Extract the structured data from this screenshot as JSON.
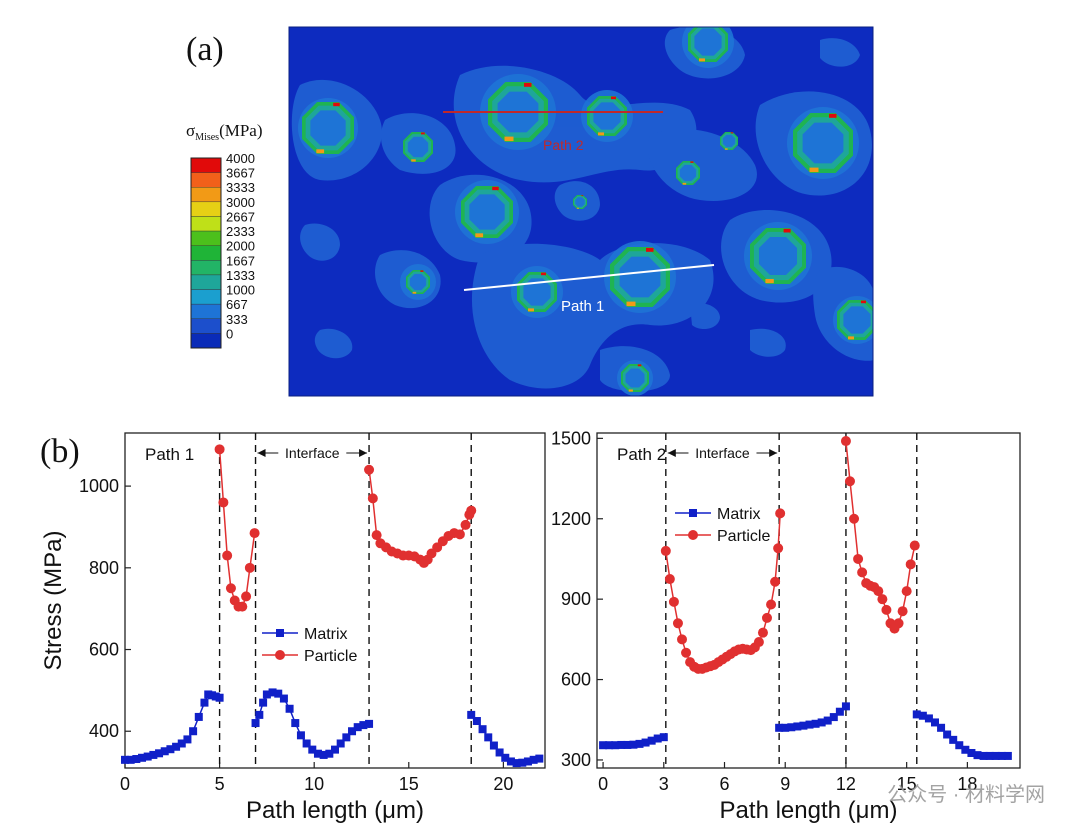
{
  "panel_a": {
    "label": "(a)",
    "legend_title_main": "σ",
    "legend_title_sub": "Mises",
    "legend_title_unit": "(MPa)",
    "levels": [
      "4000",
      "3667",
      "3333",
      "3000",
      "2667",
      "2333",
      "2000",
      "1667",
      "1333",
      "1000",
      "667",
      "333",
      "0"
    ],
    "level_colors": [
      "#e10a0a",
      "#f2601a",
      "#f29a16",
      "#e6d015",
      "#bfe018",
      "#4cc01c",
      "#1fb437",
      "#22b466",
      "#1ea69a",
      "#1b9fcf",
      "#1e74d6",
      "#1c4fcc",
      "#0a2bb8"
    ],
    "path1_label": "Path 1",
    "path2_label": "Path 2",
    "colors": {
      "background": "#0d2bbf",
      "halo": "#1f5fd2",
      "path1": "#ffffff",
      "path2": "#c0282b"
    }
  },
  "panel_b": {
    "label": "(b)"
  },
  "watermark": "公众号 · 材料学网",
  "chart_data": [
    {
      "type": "line",
      "title": "Path 1",
      "xlabel": "Path length (μm)",
      "ylabel": "Stress (MPa)",
      "xlim": [
        0,
        22.2
      ],
      "ylim": [
        310,
        1130
      ],
      "xticks": [
        0,
        5,
        10,
        15,
        20
      ],
      "yticks": [
        400,
        600,
        800,
        1000
      ],
      "interface_lines": [
        5.0,
        6.9,
        12.9,
        18.3
      ],
      "annotation": "Interface",
      "annotation_span": [
        6.9,
        12.9
      ],
      "legend": {
        "position": "center",
        "entries": [
          "Matrix",
          "Particle"
        ]
      },
      "series": [
        {
          "name": "Matrix",
          "marker": "square",
          "color": "#1020c8",
          "segments": [
            [
              [
                0,
                330
              ],
              [
                0.3,
                330
              ],
              [
                0.6,
                332
              ],
              [
                0.9,
                335
              ],
              [
                1.2,
                338
              ],
              [
                1.5,
                342
              ],
              [
                1.8,
                346
              ],
              [
                2.1,
                351
              ],
              [
                2.4,
                356
              ],
              [
                2.7,
                362
              ],
              [
                3.0,
                370
              ],
              [
                3.3,
                380
              ],
              [
                3.6,
                400
              ],
              [
                3.9,
                435
              ],
              [
                4.2,
                470
              ],
              [
                4.4,
                490
              ],
              [
                4.6,
                488
              ],
              [
                4.8,
                485
              ],
              [
                5.0,
                482
              ]
            ],
            [
              [
                6.9,
                420
              ],
              [
                7.1,
                440
              ],
              [
                7.3,
                470
              ],
              [
                7.5,
                490
              ],
              [
                7.8,
                495
              ],
              [
                8.1,
                492
              ],
              [
                8.4,
                480
              ],
              [
                8.7,
                455
              ],
              [
                9.0,
                420
              ],
              [
                9.3,
                390
              ],
              [
                9.6,
                370
              ],
              [
                9.9,
                355
              ],
              [
                10.2,
                345
              ],
              [
                10.5,
                342
              ],
              [
                10.8,
                345
              ],
              [
                11.1,
                355
              ],
              [
                11.4,
                370
              ],
              [
                11.7,
                385
              ],
              [
                12.0,
                400
              ],
              [
                12.3,
                410
              ],
              [
                12.6,
                415
              ],
              [
                12.9,
                418
              ]
            ],
            [
              [
                18.3,
                440
              ],
              [
                18.6,
                425
              ],
              [
                18.9,
                405
              ],
              [
                19.2,
                385
              ],
              [
                19.5,
                365
              ],
              [
                19.8,
                348
              ],
              [
                20.1,
                335
              ],
              [
                20.4,
                326
              ],
              [
                20.7,
                322
              ],
              [
                21.0,
                323
              ],
              [
                21.3,
                326
              ],
              [
                21.6,
                330
              ],
              [
                21.9,
                333
              ]
            ]
          ]
        },
        {
          "name": "Particle",
          "marker": "circle",
          "color": "#e03030",
          "segments": [
            [
              [
                5.0,
                1090
              ],
              [
                5.2,
                960
              ],
              [
                5.4,
                830
              ],
              [
                5.6,
                750
              ],
              [
                5.8,
                720
              ],
              [
                6.0,
                705
              ],
              [
                6.2,
                705
              ],
              [
                6.4,
                730
              ],
              [
                6.6,
                800
              ],
              [
                6.85,
                885
              ]
            ],
            [
              [
                12.9,
                1040
              ],
              [
                13.1,
                970
              ],
              [
                13.3,
                880
              ],
              [
                13.5,
                860
              ],
              [
                13.8,
                850
              ],
              [
                14.1,
                840
              ],
              [
                14.4,
                835
              ],
              [
                14.7,
                830
              ],
              [
                15.0,
                830
              ],
              [
                15.3,
                828
              ],
              [
                15.6,
                820
              ],
              [
                15.8,
                812
              ],
              [
                16.0,
                820
              ],
              [
                16.2,
                835
              ],
              [
                16.5,
                850
              ],
              [
                16.8,
                865
              ],
              [
                17.1,
                878
              ],
              [
                17.4,
                885
              ],
              [
                17.7,
                882
              ],
              [
                18.0,
                905
              ],
              [
                18.2,
                930
              ],
              [
                18.3,
                940
              ]
            ]
          ]
        }
      ]
    },
    {
      "type": "line",
      "title": "Path 2",
      "xlabel": "Path length (μm)",
      "ylabel": "",
      "xlim": [
        -0.3,
        20.6
      ],
      "ylim": [
        270,
        1520
      ],
      "xticks": [
        0,
        3,
        6,
        9,
        12,
        15,
        18
      ],
      "yticks": [
        300,
        600,
        900,
        1200,
        1500
      ],
      "interface_lines": [
        3.1,
        8.7,
        12.0,
        15.5
      ],
      "annotation": "Interface",
      "annotation_span": [
        3.1,
        8.7
      ],
      "legend": {
        "position": "upper-center",
        "entries": [
          "Matrix",
          "Particle"
        ]
      },
      "series": [
        {
          "name": "Matrix",
          "marker": "square",
          "color": "#1020c8",
          "segments": [
            [
              [
                0,
                355
              ],
              [
                0.3,
                355
              ],
              [
                0.6,
                355
              ],
              [
                0.9,
                356
              ],
              [
                1.2,
                356
              ],
              [
                1.5,
                357
              ],
              [
                1.8,
                360
              ],
              [
                2.1,
                365
              ],
              [
                2.4,
                372
              ],
              [
                2.7,
                380
              ],
              [
                3.0,
                385
              ]
            ],
            [
              [
                8.7,
                420
              ],
              [
                9.0,
                420
              ],
              [
                9.3,
                422
              ],
              [
                9.6,
                425
              ],
              [
                9.9,
                428
              ],
              [
                10.2,
                432
              ],
              [
                10.5,
                435
              ],
              [
                10.8,
                440
              ],
              [
                11.1,
                447
              ],
              [
                11.4,
                460
              ],
              [
                11.7,
                480
              ],
              [
                12.0,
                500
              ]
            ],
            [
              [
                15.5,
                470
              ],
              [
                15.8,
                465
              ],
              [
                16.1,
                455
              ],
              [
                16.4,
                440
              ],
              [
                16.7,
                420
              ],
              [
                17.0,
                395
              ],
              [
                17.3,
                375
              ],
              [
                17.6,
                355
              ],
              [
                17.9,
                338
              ],
              [
                18.2,
                326
              ],
              [
                18.5,
                318
              ],
              [
                18.8,
                315
              ],
              [
                19.1,
                315
              ],
              [
                19.4,
                315
              ],
              [
                19.7,
                315
              ],
              [
                20.0,
                315
              ]
            ]
          ]
        },
        {
          "name": "Particle",
          "marker": "circle",
          "color": "#e03030",
          "segments": [
            [
              [
                3.1,
                1080
              ],
              [
                3.3,
                975
              ],
              [
                3.5,
                890
              ],
              [
                3.7,
                810
              ],
              [
                3.9,
                750
              ],
              [
                4.1,
                700
              ],
              [
                4.3,
                665
              ],
              [
                4.5,
                648
              ],
              [
                4.7,
                640
              ],
              [
                4.9,
                640
              ],
              [
                5.1,
                645
              ],
              [
                5.3,
                650
              ],
              [
                5.5,
                655
              ],
              [
                5.7,
                665
              ],
              [
                5.9,
                675
              ],
              [
                6.1,
                685
              ],
              [
                6.3,
                695
              ],
              [
                6.5,
                705
              ],
              [
                6.7,
                712
              ],
              [
                6.9,
                715
              ],
              [
                7.1,
                712
              ],
              [
                7.3,
                710
              ],
              [
                7.5,
                720
              ],
              [
                7.7,
                740
              ],
              [
                7.9,
                775
              ],
              [
                8.1,
                830
              ],
              [
                8.3,
                880
              ],
              [
                8.5,
                965
              ],
              [
                8.65,
                1090
              ],
              [
                8.75,
                1220
              ]
            ],
            [
              [
                12.0,
                1490
              ],
              [
                12.2,
                1340
              ],
              [
                12.4,
                1200
              ],
              [
                12.6,
                1050
              ],
              [
                12.8,
                1000
              ],
              [
                13.0,
                960
              ],
              [
                13.2,
                950
              ],
              [
                13.4,
                945
              ],
              [
                13.6,
                930
              ],
              [
                13.8,
                900
              ],
              [
                14.0,
                860
              ],
              [
                14.2,
                810
              ],
              [
                14.4,
                790
              ],
              [
                14.6,
                810
              ],
              [
                14.8,
                855
              ],
              [
                15.0,
                930
              ],
              [
                15.2,
                1030
              ],
              [
                15.4,
                1100
              ]
            ]
          ]
        }
      ]
    }
  ]
}
